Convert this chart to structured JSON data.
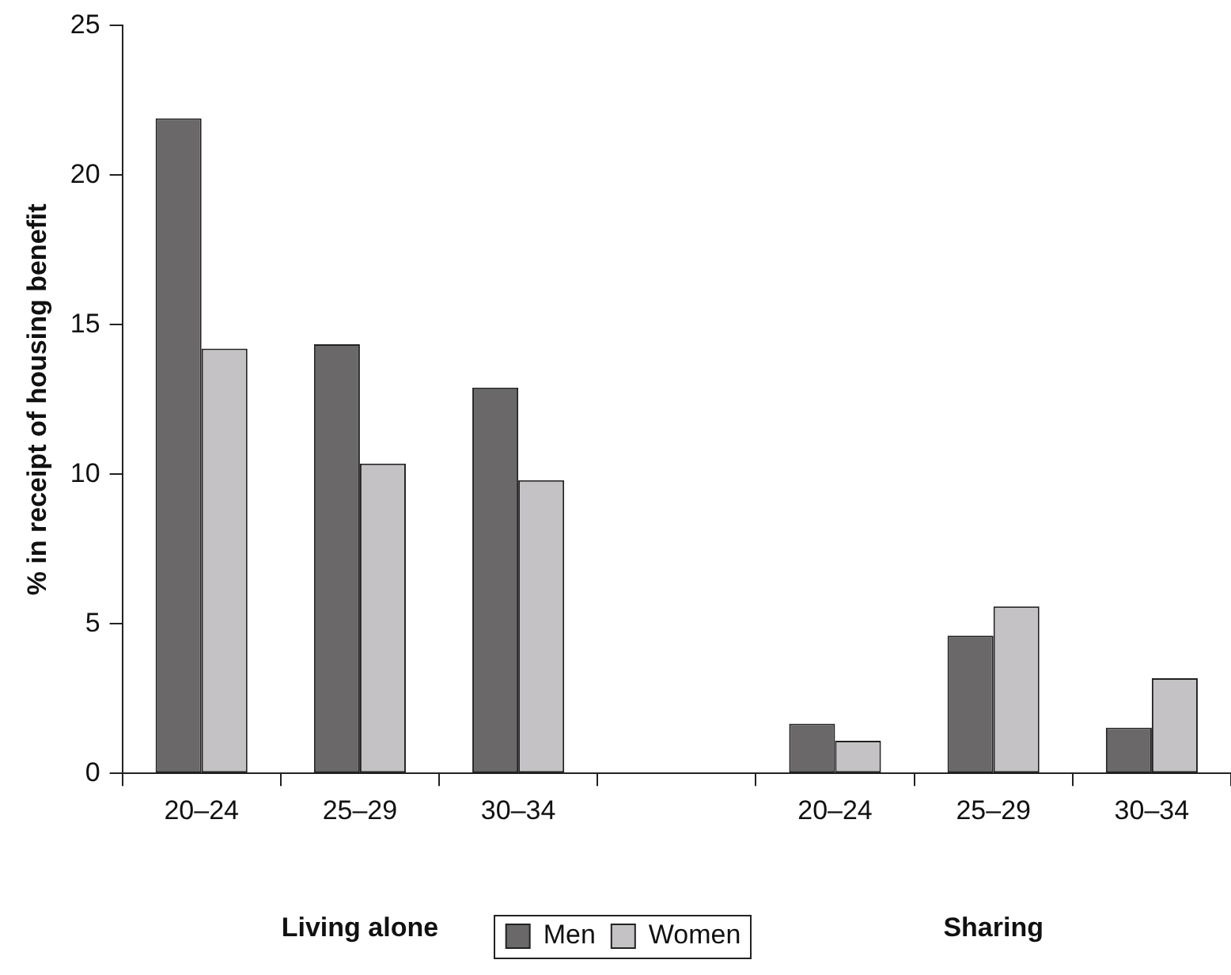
{
  "chart_data": {
    "type": "bar",
    "ylabel": "% in receipt of housing benefit",
    "categories": [
      "20–24",
      "25–29",
      "30–34",
      null,
      "20–24",
      "25–29",
      "30–34"
    ],
    "series": [
      {
        "name": "Men",
        "color": "#6a6869",
        "values": [
          21.9,
          14.35,
          12.9,
          null,
          1.66,
          4.6,
          1.53
        ]
      },
      {
        "name": "Women",
        "color": "#c4c2c5",
        "values": [
          14.2,
          10.36,
          9.8,
          null,
          1.09,
          5.58,
          3.18
        ]
      }
    ],
    "ylim": [
      0,
      25
    ],
    "yticks": [
      0,
      5,
      10,
      15,
      20,
      25
    ],
    "grid": false,
    "legend": "bottom",
    "annotations": [
      "Living alone",
      "Sharing"
    ]
  }
}
